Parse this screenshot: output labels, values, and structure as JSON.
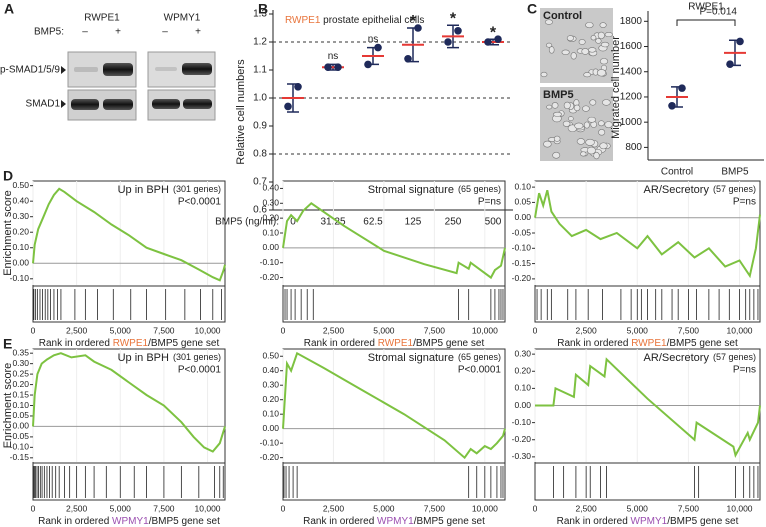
{
  "blot": {
    "label": "A",
    "treatment": "BMP5:",
    "lanes": [
      "–",
      "+"
    ],
    "cell_lines": [
      {
        "name": "RWPE1",
        "color": "#e8743b"
      },
      {
        "name": "WPMY1",
        "color": "#9b4fb0"
      }
    ],
    "rows": [
      "p-SMAD1/5/9",
      "SMAD1"
    ]
  },
  "images": {
    "label": "C",
    "groups": [
      "Control",
      "BMP5"
    ],
    "color": "#2f3f9e"
  },
  "chart_data": [
    {
      "type": "dot-error",
      "panel_label": "B",
      "title_cell": "RWPE1",
      "title_cell_color": "#e8743b",
      "title": " prostate epithelial cells",
      "y_label": "Relative cell numbers",
      "x_label": "BMP5 (ng/ml):",
      "categories": [
        "0",
        "31.25",
        "62.5",
        "125",
        "250",
        "500"
      ],
      "values": [
        1.0,
        1.11,
        1.15,
        1.19,
        1.22,
        1.2
      ],
      "errors": [
        0.05,
        0.01,
        0.03,
        0.06,
        0.04,
        0.01
      ],
      "points": [
        [
          0.97,
          1.04
        ],
        [
          1.11,
          1.11
        ],
        [
          1.12,
          1.18
        ],
        [
          1.14,
          1.25
        ],
        [
          1.2,
          1.24
        ],
        [
          1.2,
          1.21
        ]
      ],
      "annotations": [
        null,
        "ns",
        "ns",
        "*",
        "*",
        "*"
      ],
      "annotation_colors": [
        null,
        "#222222",
        "#222222",
        "#2eaa4a",
        "#2eaa4a",
        "#2eaa4a"
      ],
      "ylim": [
        0.6,
        1.3
      ],
      "yticks": [
        0.6,
        0.7,
        0.8,
        0.9,
        {
          "value": 1,
          "label": "1.0"
        },
        1.1,
        1.2,
        1.3
      ],
      "reference_lines": [
        0.8,
        1.0,
        1.2
      ],
      "mean_color": "#e53935",
      "point_color": "#1f2a5a"
    },
    {
      "type": "dot-error",
      "title_cell": "RWPE1",
      "title_cell_color": "#e8743b",
      "y_label": "Migrated cell number",
      "categories": [
        "Control",
        "BMP5"
      ],
      "values": [
        1200,
        1550
      ],
      "errors": [
        80,
        100
      ],
      "points": [
        [
          1130,
          1270
        ],
        [
          1460,
          1640
        ]
      ],
      "p_label": "P=0.014",
      "ylim": [
        700,
        1850
      ],
      "yticks": [
        800,
        1000,
        1200,
        1400,
        1600,
        1800
      ],
      "mean_color": "#e53935",
      "point_color": "#1f2a5a"
    },
    {
      "type": "gsea",
      "panel_label": "D",
      "y_label": "Enrichment score",
      "title": "Up in BPH",
      "subtitle": "(301 genes)",
      "p_label": "P<0.0001",
      "p_color": "#e53935",
      "x_label": [
        "Rank in ordered ",
        "RWPE1",
        "/BMP5 gene set"
      ],
      "x_label_color": "#e8743b",
      "color": "#7dc241",
      "x": [
        0,
        100,
        300,
        600,
        900,
        1200,
        1500,
        1800,
        2500,
        3500,
        4500,
        5500,
        6500,
        7500,
        8500,
        9500,
        10300,
        10700,
        10900,
        11000
      ],
      "values": [
        0,
        0.12,
        0.22,
        0.3,
        0.38,
        0.44,
        0.48,
        0.46,
        0.4,
        0.33,
        0.25,
        0.18,
        0.1,
        0.06,
        0.02,
        -0.04,
        -0.09,
        -0.11,
        -0.05,
        -0.01
      ],
      "hits": [
        50,
        150,
        250,
        400,
        550,
        700,
        850,
        1000,
        1200,
        1400,
        1600,
        2400,
        3000,
        3700,
        4600,
        5600,
        6500,
        7600,
        8700,
        9600,
        10300,
        10800
      ],
      "xlim": [
        0,
        11000
      ],
      "xticks": [
        0,
        {
          "value": 2500,
          "label": "2,500"
        },
        {
          "value": 5000,
          "label": "5,000"
        },
        {
          "value": 7500,
          "label": "7,500"
        },
        {
          "value": 10000,
          "label": "10,000"
        }
      ],
      "ylim": [
        -0.14,
        0.53
      ],
      "yticks": [
        {
          "value": 0.5,
          "label": "0.50"
        },
        {
          "value": 0.4,
          "label": "0.40"
        },
        {
          "value": 0.3,
          "label": "0.30"
        },
        {
          "value": 0.2,
          "label": "0.20"
        },
        {
          "value": 0.1,
          "label": "0.10"
        },
        {
          "value": 0,
          "label": "0.00"
        },
        {
          "value": -0.1,
          "label": "-0.10"
        }
      ]
    },
    {
      "type": "gsea",
      "title": "Stromal signature",
      "subtitle": "(65 genes)",
      "p_label": "P=ns",
      "p_color": "#222222",
      "x_label": [
        "Rank in ordered ",
        "RWPE1",
        "/BMP5 gene set"
      ],
      "x_label_color": "#e8743b",
      "color": "#7dc241",
      "x": [
        0,
        200,
        400,
        700,
        1000,
        1400,
        3000,
        5000,
        7000,
        8600,
        8700,
        9200,
        9300,
        10300,
        10500,
        10800,
        11000
      ],
      "values": [
        0,
        0.18,
        0.22,
        0.18,
        0.25,
        0.3,
        0.15,
        -0.02,
        -0.11,
        -0.17,
        -0.1,
        -0.14,
        -0.1,
        -0.2,
        -0.15,
        -0.12,
        0.0
      ],
      "hits": [
        100,
        200,
        400,
        600,
        900,
        1200,
        1500,
        8700,
        9200,
        10300,
        10500,
        10700,
        10800,
        10900
      ],
      "xlim": [
        0,
        11000
      ],
      "xticks": [
        0,
        {
          "value": 2500,
          "label": "2,500"
        },
        {
          "value": 5000,
          "label": "5,000"
        },
        {
          "value": 7500,
          "label": "7,500"
        },
        {
          "value": 10000,
          "label": "10,000"
        }
      ],
      "ylim": [
        -0.25,
        0.45
      ],
      "yticks": [
        {
          "value": 0.4,
          "label": "0.40"
        },
        {
          "value": 0.3,
          "label": "0.30"
        },
        {
          "value": 0.2,
          "label": "0.20"
        },
        {
          "value": 0.1,
          "label": "0.10"
        },
        {
          "value": 0,
          "label": "0.00"
        },
        {
          "value": -0.1,
          "label": "-0.10"
        },
        {
          "value": -0.2,
          "label": "-0.20"
        }
      ]
    },
    {
      "type": "gsea",
      "title": "AR/Secretory",
      "subtitle": "(57 genes)",
      "p_label": "P=ns",
      "p_color": "#222222",
      "x_label": [
        "Rank in ordered ",
        "RWPE1",
        "/BMP5 gene set"
      ],
      "x_label_color": "#e8743b",
      "color": "#7dc241",
      "x": [
        0,
        200,
        400,
        600,
        800,
        1200,
        1800,
        2500,
        3200,
        4000,
        5000,
        5500,
        6200,
        7000,
        7800,
        8500,
        9300,
        10000,
        10500,
        10800,
        11000
      ],
      "values": [
        0,
        0.08,
        0.04,
        0.09,
        0.02,
        -0.02,
        -0.06,
        -0.04,
        -0.07,
        -0.05,
        -0.1,
        -0.06,
        -0.12,
        -0.08,
        -0.13,
        -0.1,
        -0.16,
        -0.14,
        -0.19,
        -0.1,
        0.01
      ],
      "hits": [
        100,
        300,
        600,
        800,
        1600,
        2000,
        2600,
        3300,
        4200,
        4700,
        5000,
        5200,
        5500,
        5900,
        6200,
        6700,
        7000,
        7500,
        7900,
        8500,
        9000,
        9500,
        10000,
        10300,
        10500,
        10700,
        10900
      ],
      "xlim": [
        0,
        11000
      ],
      "xticks": [
        0,
        {
          "value": 2500,
          "label": "2,500"
        },
        {
          "value": 5000,
          "label": "5,000"
        },
        {
          "value": 7500,
          "label": "7,500"
        },
        {
          "value": 10000,
          "label": "10,000"
        }
      ],
      "ylim": [
        -0.22,
        0.12
      ],
      "yticks": [
        {
          "value": 0.1,
          "label": "0.10"
        },
        {
          "value": 0.05,
          "label": "0.05"
        },
        {
          "value": 0,
          "label": "0.00"
        },
        {
          "value": -0.05,
          "label": "-0.05"
        },
        {
          "value": -0.1,
          "label": "-0.10"
        },
        {
          "value": -0.15,
          "label": "-0.15"
        },
        {
          "value": -0.2,
          "label": "-0.20"
        }
      ]
    },
    {
      "type": "gsea",
      "panel_label": "E",
      "y_label": "Enrichment score",
      "title": "Up in BPH",
      "subtitle": "(301 genes)",
      "p_label": "P<0.0001",
      "p_color": "#e53935",
      "x_label": [
        "Rank in ordered ",
        "WPMY1",
        "/BMP5 gene set"
      ],
      "x_label_color": "#9b4fb0",
      "color": "#7dc241",
      "x": [
        0,
        100,
        250,
        500,
        800,
        1200,
        1600,
        2200,
        3000,
        3500,
        4500,
        5500,
        6500,
        7500,
        8500,
        9200,
        9800,
        10300,
        10700,
        11000
      ],
      "values": [
        0,
        0.15,
        0.25,
        0.3,
        0.32,
        0.34,
        0.35,
        0.33,
        0.34,
        0.31,
        0.27,
        0.21,
        0.15,
        0.1,
        0.02,
        -0.05,
        -0.1,
        -0.12,
        -0.08,
        0.0
      ],
      "hits": [
        30,
        80,
        150,
        230,
        320,
        420,
        520,
        650,
        800,
        950,
        1100,
        1300,
        1500,
        1800,
        2100,
        2500,
        3000,
        3500,
        4200,
        5000,
        5800,
        6500,
        7500,
        8500,
        9500,
        10400,
        10700,
        10900
      ],
      "xlim": [
        0,
        11000
      ],
      "xticks": [
        0,
        {
          "value": 2500,
          "label": "2,500"
        },
        {
          "value": 5000,
          "label": "5,000"
        },
        {
          "value": 7500,
          "label": "7,500"
        },
        {
          "value": 10000,
          "label": "10,000"
        }
      ],
      "ylim": [
        -0.17,
        0.37
      ],
      "yticks": [
        {
          "value": 0.35,
          "label": "0.35"
        },
        {
          "value": 0.3,
          "label": "0.30"
        },
        {
          "value": 0.25,
          "label": "0.25"
        },
        {
          "value": 0.2,
          "label": "0.20"
        },
        {
          "value": 0.15,
          "label": "0.15"
        },
        {
          "value": 0.1,
          "label": "0.10"
        },
        {
          "value": 0.05,
          "label": "0.05"
        },
        {
          "value": 0,
          "label": "0.00"
        },
        {
          "value": -0.05,
          "label": "-0.05"
        },
        {
          "value": -0.1,
          "label": "-0.10"
        },
        {
          "value": -0.15,
          "label": "-0.15"
        }
      ]
    },
    {
      "type": "gsea",
      "title": "Stromal signature",
      "subtitle": "(65 genes)",
      "p_label": "P<0.0001",
      "p_color": "#e53935",
      "x_label": [
        "Rank in ordered ",
        "WPMY1",
        "/BMP5 gene set"
      ],
      "x_label_color": "#9b4fb0",
      "color": "#7dc241",
      "x": [
        0,
        200,
        400,
        700,
        2000,
        4000,
        6000,
        8000,
        9000,
        9300,
        9600,
        10000,
        10300,
        10600,
        10900,
        11000
      ],
      "values": [
        0,
        0.45,
        0.4,
        0.52,
        0.42,
        0.26,
        0.1,
        -0.08,
        -0.2,
        -0.14,
        -0.17,
        -0.12,
        -0.14,
        -0.1,
        -0.05,
        0.0
      ],
      "hits": [
        50,
        150,
        300,
        500,
        700,
        9200,
        9600,
        10000,
        10300,
        10600,
        10800,
        10900
      ],
      "xlim": [
        0,
        11000
      ],
      "xticks": [
        0,
        {
          "value": 2500,
          "label": "2,500"
        },
        {
          "value": 5000,
          "label": "5,000"
        },
        {
          "value": 7500,
          "label": "7,500"
        },
        {
          "value": 10000,
          "label": "10,000"
        }
      ],
      "ylim": [
        -0.23,
        0.55
      ],
      "yticks": [
        {
          "value": 0.5,
          "label": "0.50"
        },
        {
          "value": 0.4,
          "label": "0.40"
        },
        {
          "value": 0.3,
          "label": "0.30"
        },
        {
          "value": 0.2,
          "label": "0.20"
        },
        {
          "value": 0.1,
          "label": "0.10"
        },
        {
          "value": 0,
          "label": "0.00"
        },
        {
          "value": -0.1,
          "label": "-0.10"
        },
        {
          "value": -0.2,
          "label": "-0.20"
        }
      ]
    },
    {
      "type": "gsea",
      "title": "AR/Secretory",
      "subtitle": "(57 genes)",
      "p_label": "P=ns",
      "p_color": "#222222",
      "x_label": [
        "Rank in ordered ",
        "WPMY1",
        "/BMP5 gene set"
      ],
      "x_label_color": "#9b4fb0",
      "color": "#7dc241",
      "x": [
        0,
        900,
        1000,
        1900,
        2000,
        2600,
        2700,
        3400,
        3500,
        5500,
        7800,
        7900,
        9700,
        9800,
        10400,
        10500,
        10900,
        11000
      ],
      "values": [
        0,
        0.0,
        0.1,
        0.05,
        0.18,
        0.12,
        0.23,
        0.17,
        0.27,
        0.04,
        -0.2,
        -0.1,
        -0.24,
        -0.29,
        -0.16,
        -0.2,
        -0.1,
        0.0
      ],
      "hits": [
        900,
        1400,
        2000,
        2500,
        2700,
        3200,
        3500,
        7800,
        8000,
        9800,
        10200,
        10500,
        10700,
        10900
      ],
      "xlim": [
        0,
        11000
      ],
      "xticks": [
        0,
        {
          "value": 2500,
          "label": "2,500"
        },
        {
          "value": 5000,
          "label": "5,000"
        },
        {
          "value": 7500,
          "label": "7,500"
        },
        {
          "value": 10000,
          "label": "10,000"
        }
      ],
      "ylim": [
        -0.33,
        0.33
      ],
      "yticks": [
        {
          "value": 0.3,
          "label": "0.30"
        },
        {
          "value": 0.2,
          "label": "0.20"
        },
        {
          "value": 0.1,
          "label": "0.10"
        },
        {
          "value": 0,
          "label": "0.00"
        },
        {
          "value": -0.1,
          "label": "-0.10"
        },
        {
          "value": -0.2,
          "label": "-0.20"
        },
        {
          "value": -0.3,
          "label": "-0.30"
        }
      ]
    }
  ]
}
